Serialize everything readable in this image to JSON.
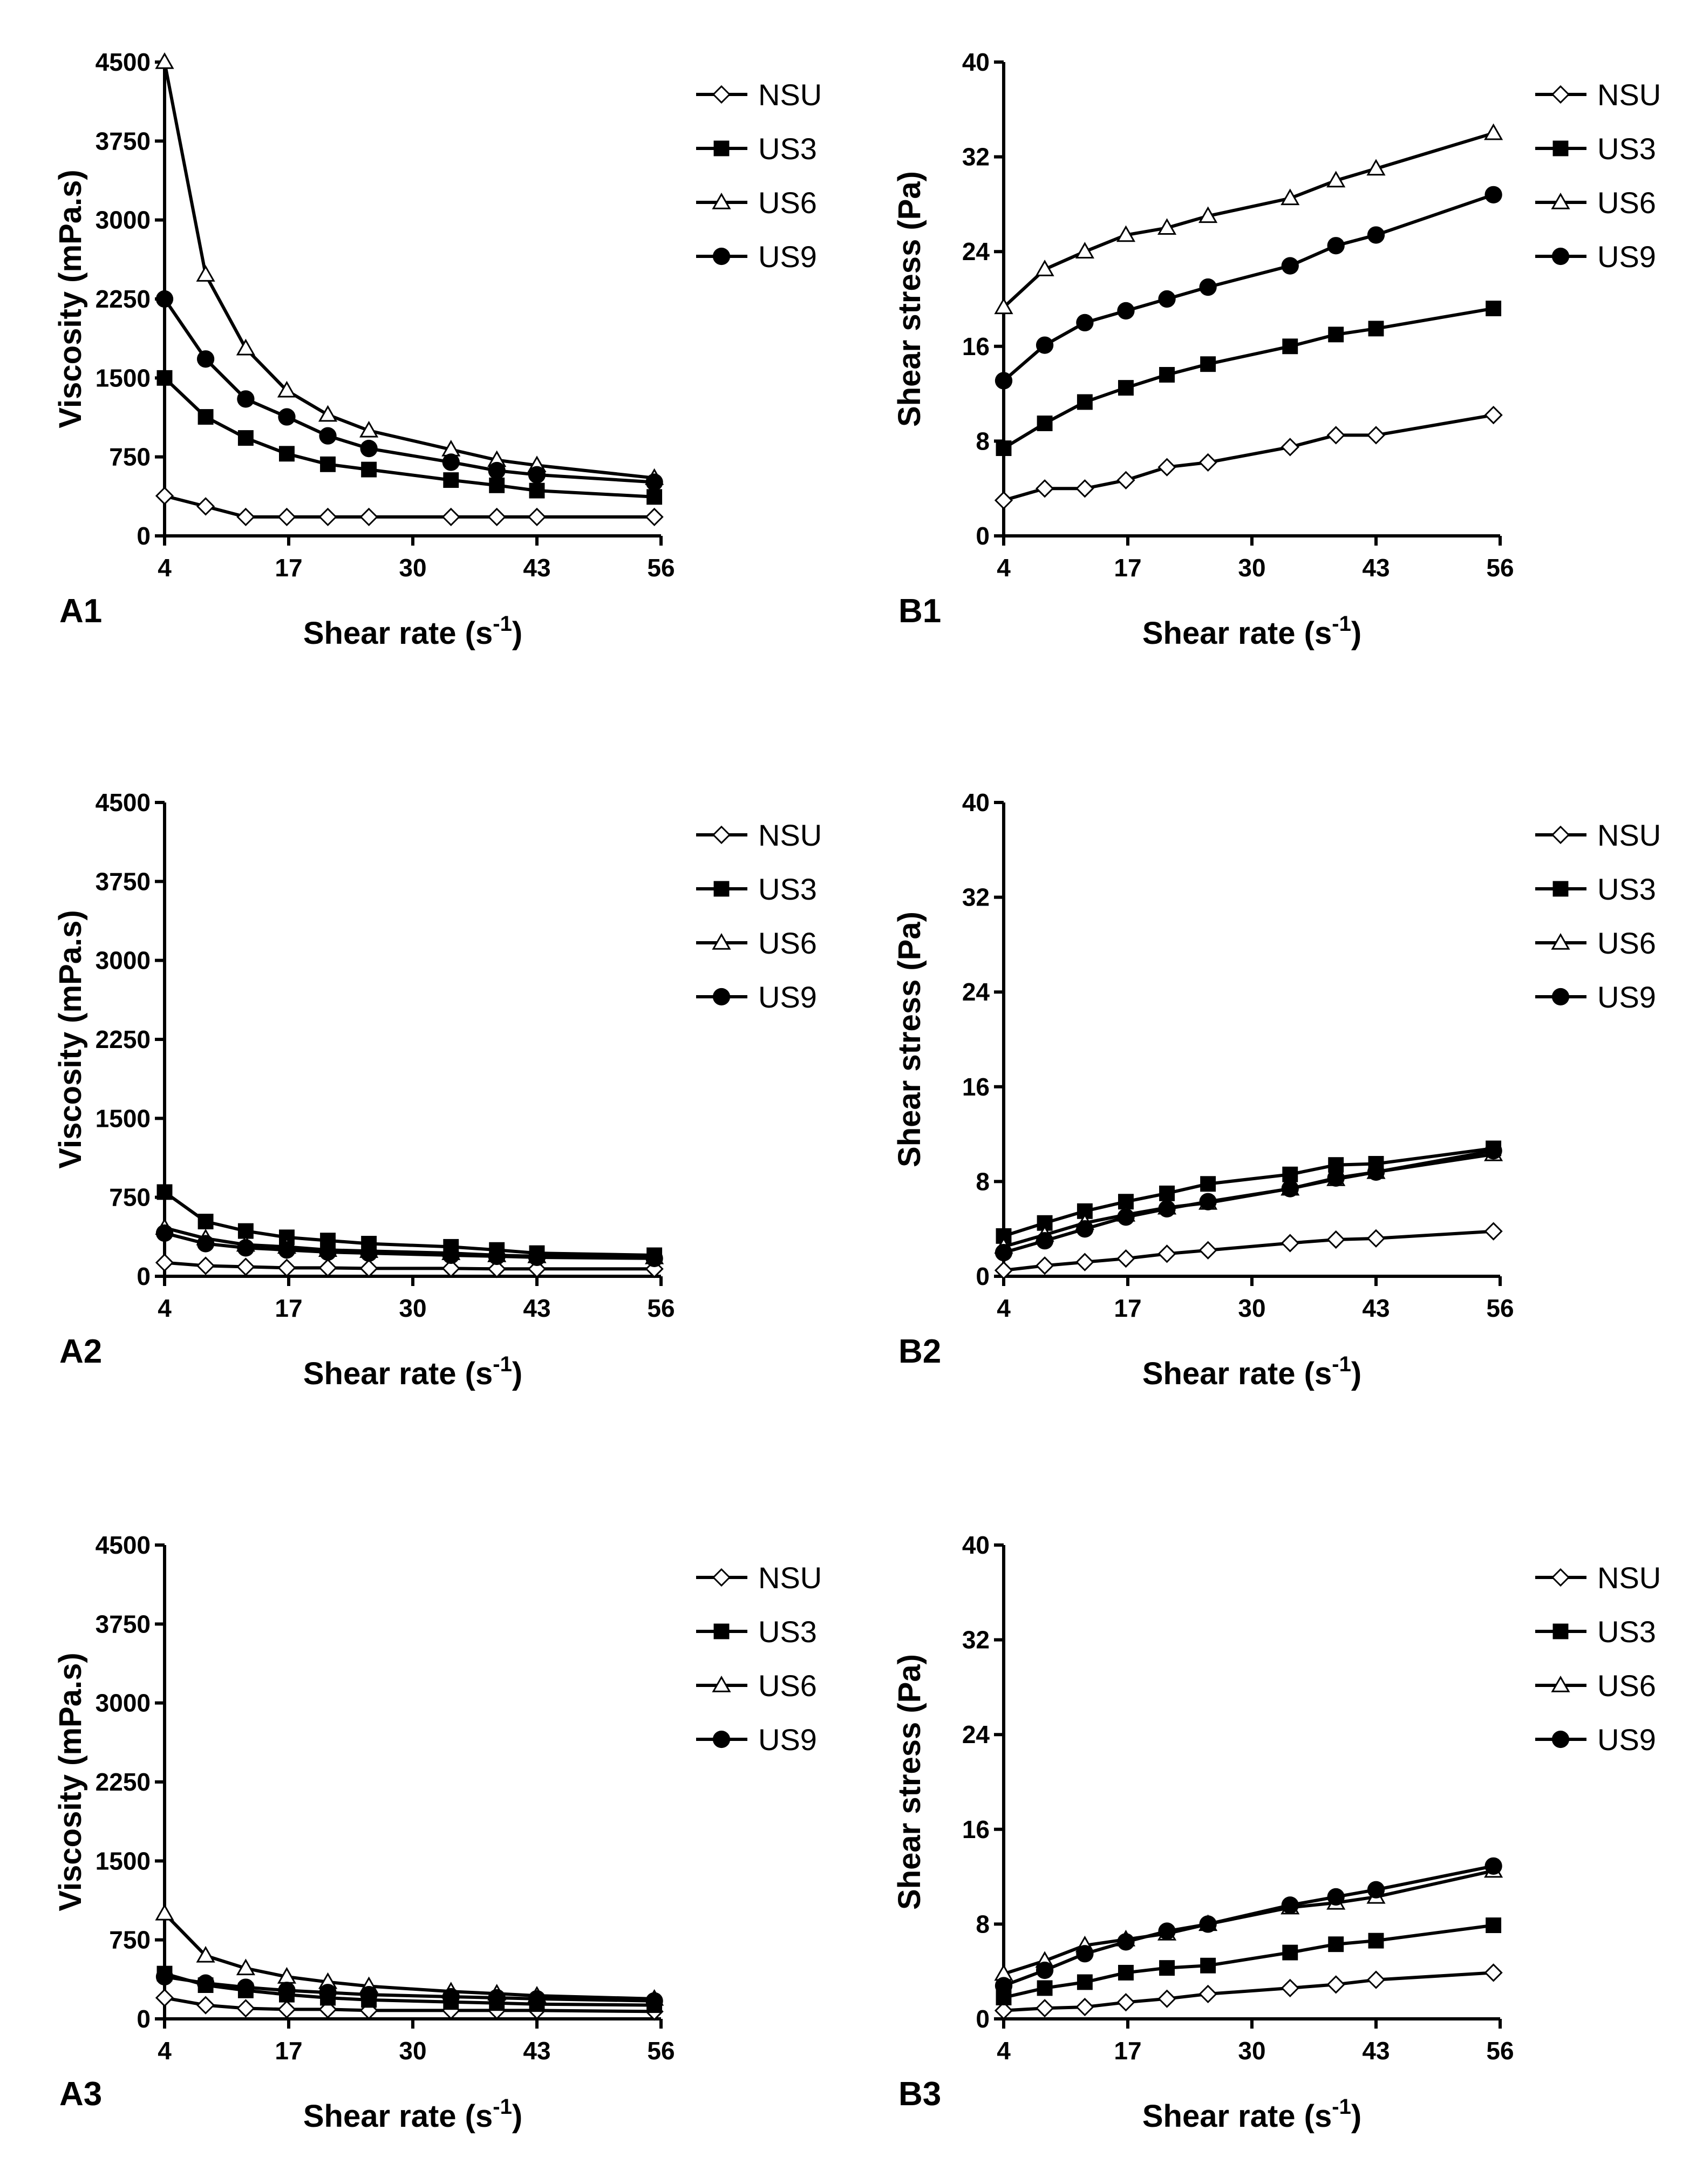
{
  "chart_data": [
    {
      "panel": "A1",
      "type": "line",
      "xlabel": "Shear rate (s",
      "xlabel_sup": "-1",
      "xlabel_close": ")",
      "ylabel": "Viscosity (mPa.s)",
      "xlim": [
        4,
        56
      ],
      "ylim": [
        0,
        4500
      ],
      "xticks": [
        "4",
        "17",
        "30",
        "43",
        "56"
      ],
      "yticks": [
        "0",
        "750",
        "1500",
        "2250",
        "3000",
        "3750",
        "4500"
      ],
      "x": [
        4,
        8.3,
        12.5,
        16.8,
        21.1,
        25.4,
        34,
        38.8,
        43,
        55.3
      ],
      "series": [
        {
          "name": "NSU",
          "marker": "diamond-open",
          "values": [
            380,
            280,
            180,
            180,
            180,
            180,
            180,
            180,
            180,
            180
          ]
        },
        {
          "name": "US3",
          "marker": "square-filled",
          "values": [
            1500,
            1130,
            930,
            780,
            680,
            630,
            530,
            480,
            430,
            370
          ]
        },
        {
          "name": "US6",
          "marker": "triangle-open",
          "values": [
            4500,
            2480,
            1780,
            1380,
            1150,
            1000,
            820,
            720,
            670,
            550
          ]
        },
        {
          "name": "US9",
          "marker": "circle-filled",
          "values": [
            2250,
            1680,
            1300,
            1130,
            950,
            830,
            700,
            620,
            580,
            510
          ]
        }
      ]
    },
    {
      "panel": "B1",
      "type": "line",
      "xlabel": "Shear rate (s",
      "xlabel_sup": "-1",
      "xlabel_close": ")",
      "ylabel": "Shear stress (Pa)",
      "xlim": [
        4,
        56
      ],
      "ylim": [
        0,
        40
      ],
      "xticks": [
        "4",
        "17",
        "30",
        "43",
        "56"
      ],
      "yticks": [
        "0",
        "8",
        "16",
        "24",
        "32",
        "40"
      ],
      "x": [
        4,
        8.3,
        12.5,
        16.8,
        21.1,
        25.4,
        34,
        38.8,
        43,
        55.3
      ],
      "series": [
        {
          "name": "NSU",
          "marker": "diamond-open",
          "values": [
            3,
            4,
            4,
            4.7,
            5.8,
            6.2,
            7.5,
            8.5,
            8.5,
            10.2
          ]
        },
        {
          "name": "US3",
          "marker": "square-filled",
          "values": [
            7.4,
            9.5,
            11.3,
            12.5,
            13.6,
            14.5,
            16,
            17,
            17.5,
            19.2
          ]
        },
        {
          "name": "US6",
          "marker": "triangle-open",
          "values": [
            19.3,
            22.5,
            24,
            25.4,
            26,
            27,
            28.5,
            30,
            31,
            34
          ]
        },
        {
          "name": "US9",
          "marker": "circle-filled",
          "values": [
            13.1,
            16.1,
            18,
            19,
            20,
            21,
            22.8,
            24.5,
            25.4,
            28.8
          ]
        }
      ]
    },
    {
      "panel": "A2",
      "type": "line",
      "xlabel": "Shear rate (s",
      "xlabel_sup": "-1",
      "xlabel_close": ")",
      "ylabel": "Viscosity (mPa.s)",
      "xlim": [
        4,
        56
      ],
      "ylim": [
        0,
        4500
      ],
      "xticks": [
        "4",
        "17",
        "30",
        "43",
        "56"
      ],
      "yticks": [
        "0",
        "750",
        "1500",
        "2250",
        "3000",
        "3750",
        "4500"
      ],
      "x": [
        4,
        8.3,
        12.5,
        16.8,
        21.1,
        25.4,
        34,
        38.8,
        43,
        55.3
      ],
      "series": [
        {
          "name": "NSU",
          "marker": "diamond-open",
          "values": [
            130,
            100,
            90,
            80,
            80,
            75,
            75,
            70,
            70,
            70
          ]
        },
        {
          "name": "US3",
          "marker": "square-filled",
          "values": [
            800,
            520,
            430,
            370,
            340,
            310,
            280,
            250,
            220,
            200
          ]
        },
        {
          "name": "US6",
          "marker": "triangle-open",
          "values": [
            460,
            360,
            300,
            280,
            250,
            240,
            220,
            200,
            190,
            180
          ]
        },
        {
          "name": "US9",
          "marker": "circle-filled",
          "values": [
            410,
            310,
            270,
            250,
            230,
            220,
            200,
            190,
            180,
            170
          ]
        }
      ]
    },
    {
      "panel": "B2",
      "type": "line",
      "xlabel": "Shear rate (s",
      "xlabel_sup": "-1",
      "xlabel_close": ")",
      "ylabel": "Shear stress (Pa)",
      "xlim": [
        4,
        56
      ],
      "ylim": [
        0,
        40
      ],
      "xticks": [
        "4",
        "17",
        "30",
        "43",
        "56"
      ],
      "yticks": [
        "0",
        "8",
        "16",
        "24",
        "32",
        "40"
      ],
      "x": [
        4,
        8.3,
        12.5,
        16.8,
        21.1,
        25.4,
        34,
        38.8,
        43,
        55.3
      ],
      "series": [
        {
          "name": "NSU",
          "marker": "diamond-open",
          "values": [
            0.5,
            0.9,
            1.2,
            1.5,
            1.9,
            2.2,
            2.8,
            3.1,
            3.2,
            3.8
          ]
        },
        {
          "name": "US3",
          "marker": "square-filled",
          "values": [
            3.4,
            4.5,
            5.5,
            6.3,
            7,
            7.8,
            8.6,
            9.4,
            9.5,
            10.8
          ]
        },
        {
          "name": "US6",
          "marker": "triangle-open",
          "values": [
            2.5,
            3.5,
            4.5,
            5.2,
            5.8,
            6.2,
            7.4,
            8.2,
            8.8,
            10.3
          ]
        },
        {
          "name": "US9",
          "marker": "circle-filled",
          "values": [
            2,
            3,
            4,
            5,
            5.7,
            6.3,
            7.4,
            8.3,
            8.8,
            10.6
          ]
        }
      ]
    },
    {
      "panel": "A3",
      "type": "line",
      "xlabel": "Shear rate (s",
      "xlabel_sup": "-1",
      "xlabel_close": ")",
      "ylabel": "Viscosity (mPa.s)",
      "xlim": [
        4,
        56
      ],
      "ylim": [
        0,
        4500
      ],
      "xticks": [
        "4",
        "17",
        "30",
        "43",
        "56"
      ],
      "yticks": [
        "0",
        "750",
        "1500",
        "2250",
        "3000",
        "3750",
        "4500"
      ],
      "x": [
        4,
        8.3,
        12.5,
        16.8,
        21.1,
        25.4,
        34,
        38.8,
        43,
        55.3
      ],
      "series": [
        {
          "name": "NSU",
          "marker": "diamond-open",
          "values": [
            200,
            130,
            100,
            90,
            90,
            80,
            80,
            80,
            80,
            70
          ]
        },
        {
          "name": "US3",
          "marker": "square-filled",
          "values": [
            430,
            320,
            270,
            230,
            200,
            180,
            160,
            150,
            140,
            130
          ]
        },
        {
          "name": "US6",
          "marker": "triangle-open",
          "values": [
            1000,
            600,
            480,
            400,
            350,
            310,
            260,
            240,
            220,
            190
          ]
        },
        {
          "name": "US9",
          "marker": "circle-filled",
          "values": [
            400,
            340,
            300,
            270,
            250,
            230,
            210,
            200,
            190,
            170
          ]
        }
      ]
    },
    {
      "panel": "B3",
      "type": "line",
      "xlabel": "Shear rate (s",
      "xlabel_sup": "-1",
      "xlabel_close": ")",
      "ylabel": "Shear stress (Pa)",
      "xlim": [
        4,
        56
      ],
      "ylim": [
        0,
        40
      ],
      "xticks": [
        "4",
        "17",
        "30",
        "43",
        "56"
      ],
      "yticks": [
        "0",
        "8",
        "16",
        "24",
        "32",
        "40"
      ],
      "x": [
        4,
        8.3,
        12.5,
        16.8,
        21.1,
        25.4,
        34,
        38.8,
        43,
        55.3
      ],
      "series": [
        {
          "name": "NSU",
          "marker": "diamond-open",
          "values": [
            0.7,
            0.9,
            1,
            1.4,
            1.7,
            2.1,
            2.6,
            2.9,
            3.3,
            3.9
          ]
        },
        {
          "name": "US3",
          "marker": "square-filled",
          "values": [
            1.8,
            2.6,
            3.1,
            3.9,
            4.3,
            4.5,
            5.6,
            6.3,
            6.6,
            7.9
          ]
        },
        {
          "name": "US6",
          "marker": "triangle-open",
          "values": [
            3.8,
            4.9,
            6.2,
            6.7,
            7.2,
            8,
            9.4,
            9.8,
            10.3,
            12.5
          ]
        },
        {
          "name": "US9",
          "marker": "circle-filled",
          "values": [
            2.8,
            4.1,
            5.5,
            6.5,
            7.4,
            8,
            9.6,
            10.3,
            10.9,
            12.9
          ]
        }
      ]
    }
  ]
}
